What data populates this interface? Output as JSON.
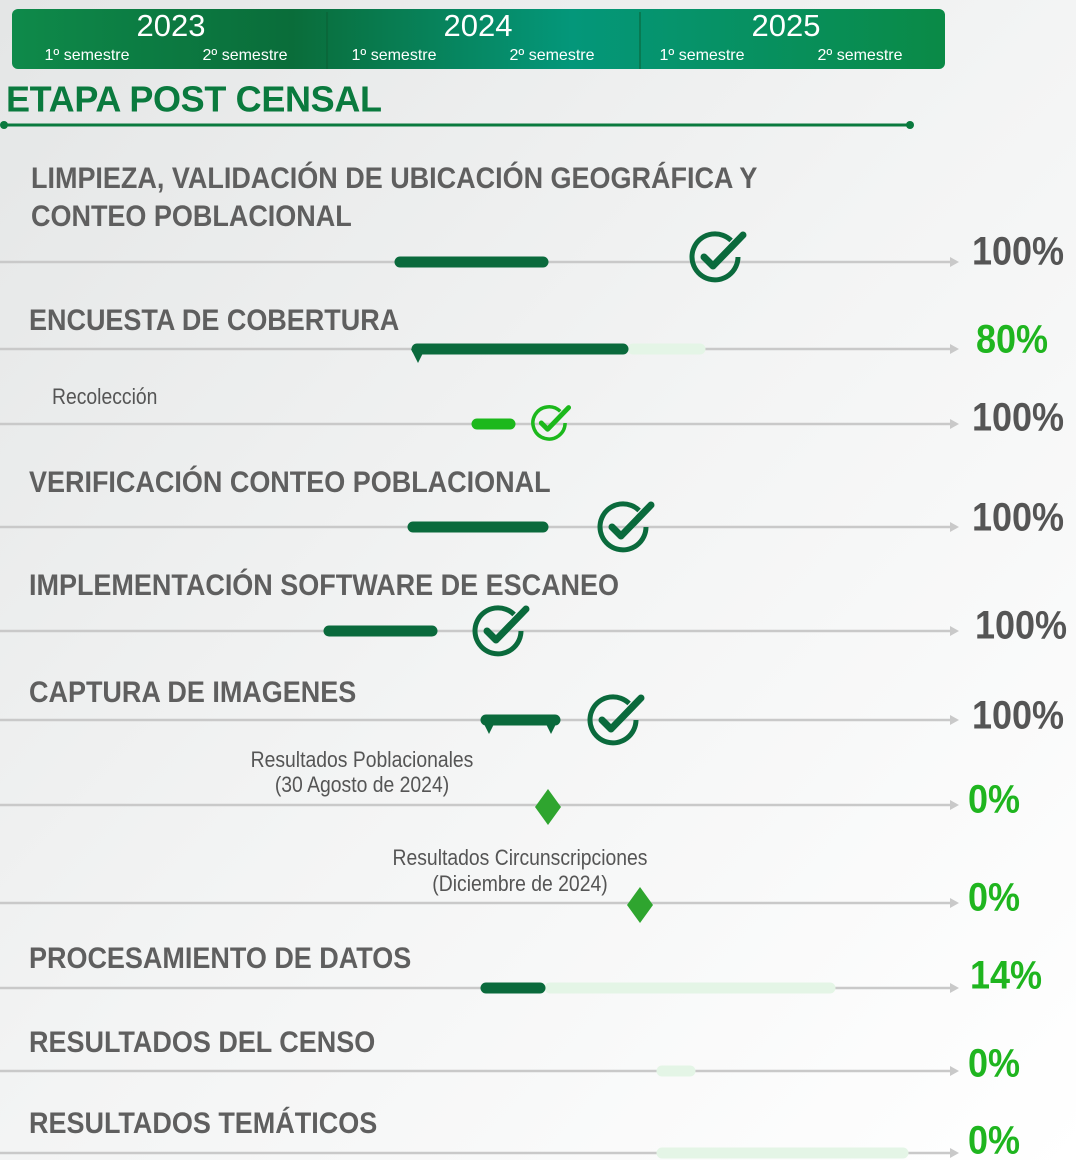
{
  "header": {
    "years": [
      {
        "year": "2023",
        "semesters": [
          "1º semestre",
          "2º semestre"
        ]
      },
      {
        "year": "2024",
        "semesters": [
          "1º semestre",
          "2º semestre"
        ]
      },
      {
        "year": "2025",
        "semesters": [
          "1º semestre",
          "2º semestre"
        ]
      }
    ]
  },
  "section_title": "ETAPA POST CENSAL",
  "tasks": [
    {
      "lines": [
        "LIMPIEZA, VALIDACIÓN DE UBICACIÓN GEOGRÁFICA Y",
        "CONTEO POBLACIONAL"
      ],
      "percent": "100%"
    },
    {
      "lines": [
        "ENCUESTA DE COBERTURA"
      ],
      "percent": "80%"
    },
    {
      "lines": [
        "Recolección"
      ],
      "percent": "100%"
    },
    {
      "lines": [
        "VERIFICACIÓN CONTEO POBLACIONAL"
      ],
      "percent": "100%"
    },
    {
      "lines": [
        "IMPLEMENTACIÓN SOFTWARE DE ESCANEO"
      ],
      "percent": "100%"
    },
    {
      "lines": [
        "CAPTURA DE IMAGENES"
      ],
      "percent": "100%"
    },
    {
      "lines": [
        "Resultados Poblacionales",
        "(30 Agosto de 2024)"
      ],
      "percent": "0%"
    },
    {
      "lines": [
        "Resultados Circunscripciones",
        "(Diciembre de 2024)"
      ],
      "percent": "0%"
    },
    {
      "lines": [
        "PROCESAMIENTO DE DATOS"
      ],
      "percent": "14%"
    },
    {
      "lines": [
        "RESULTADOS DEL CENSO"
      ],
      "percent": "0%"
    },
    {
      "lines": [
        "RESULTADOS TEMÁTICOS"
      ],
      "percent": "0%"
    }
  ]
}
